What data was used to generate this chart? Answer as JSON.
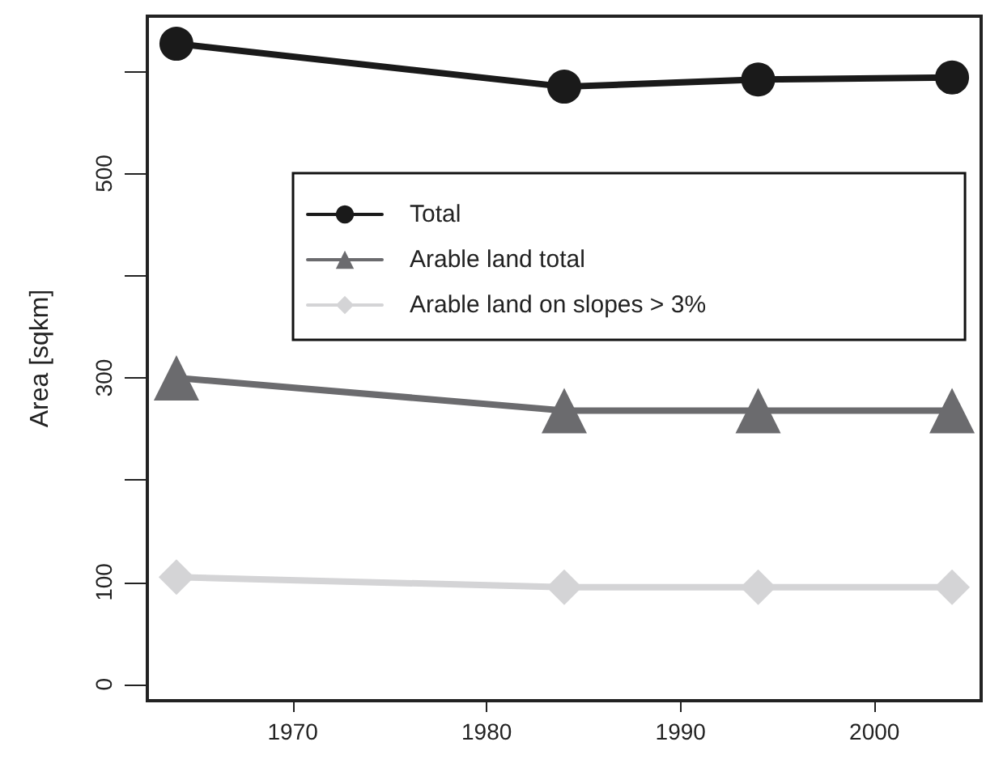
{
  "chart_data": {
    "type": "line",
    "ylabel": "Area [sqkm]",
    "x": [
      1964,
      1984,
      1994,
      2004
    ],
    "series": [
      {
        "name": "Total",
        "color": "#1a1a1a",
        "marker": "circle",
        "values": [
          627,
          585,
          592,
          594
        ]
      },
      {
        "name": "Arable land total",
        "color": "#6b6b6e",
        "marker": "triangle",
        "values": [
          300,
          268,
          268,
          268
        ]
      },
      {
        "name": "Arable land on slopes > 3%",
        "color": "#d4d4d6",
        "marker": "diamond",
        "values": [
          105,
          95,
          95,
          95
        ]
      }
    ],
    "xlim": [
      1962.5,
      2005.5
    ],
    "xticks": [
      1970,
      1980,
      1990,
      2000
    ],
    "ylim": [
      -16,
      654
    ],
    "yticks": [
      0,
      100,
      {
        "value": 200,
        "label": null
      },
      300,
      {
        "value": 400,
        "label": null
      },
      500,
      {
        "value": 600,
        "label": null
      }
    ],
    "grid": false,
    "legend": "top",
    "line_style": "solid"
  }
}
